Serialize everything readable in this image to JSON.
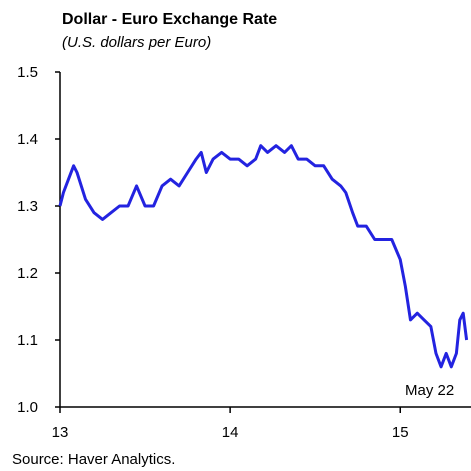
{
  "chart_data": {
    "type": "line",
    "title": "Dollar - Euro Exchange Rate",
    "subtitle": "(U.S. dollars per Euro)",
    "source": "Source: Haver Analytics.",
    "annotation": "May 22",
    "x": [
      13.0,
      13.02,
      13.05,
      13.08,
      13.1,
      13.15,
      13.2,
      13.25,
      13.3,
      13.35,
      13.4,
      13.45,
      13.5,
      13.55,
      13.6,
      13.65,
      13.7,
      13.75,
      13.8,
      13.83,
      13.86,
      13.9,
      13.95,
      14.0,
      14.05,
      14.1,
      14.15,
      14.18,
      14.22,
      14.27,
      14.32,
      14.36,
      14.4,
      14.45,
      14.5,
      14.55,
      14.6,
      14.65,
      14.68,
      14.72,
      14.75,
      14.8,
      14.85,
      14.9,
      14.95,
      15.0,
      15.03,
      15.06,
      15.1,
      15.14,
      15.18,
      15.21,
      15.24,
      15.27,
      15.3,
      15.33,
      15.35,
      15.37,
      15.39
    ],
    "series": [
      {
        "name": "Dollar - Euro",
        "color": "#2323e0",
        "values": [
          1.3,
          1.32,
          1.34,
          1.36,
          1.35,
          1.31,
          1.29,
          1.28,
          1.29,
          1.3,
          1.3,
          1.33,
          1.3,
          1.3,
          1.33,
          1.34,
          1.33,
          1.35,
          1.37,
          1.38,
          1.35,
          1.37,
          1.38,
          1.37,
          1.37,
          1.36,
          1.37,
          1.39,
          1.38,
          1.39,
          1.38,
          1.39,
          1.37,
          1.37,
          1.36,
          1.36,
          1.34,
          1.33,
          1.32,
          1.29,
          1.27,
          1.27,
          1.25,
          1.25,
          1.25,
          1.22,
          1.18,
          1.13,
          1.14,
          1.13,
          1.12,
          1.08,
          1.06,
          1.08,
          1.06,
          1.08,
          1.13,
          1.14,
          1.1
        ]
      }
    ],
    "xlim": [
      13,
      15.41
    ],
    "xticks": [
      13,
      14,
      15
    ],
    "ylim": [
      1,
      1.5
    ],
    "yticks": [
      {
        "value": 1,
        "label": "1.0"
      },
      1.1,
      1.2,
      1.3,
      1.4,
      1.5
    ]
  }
}
